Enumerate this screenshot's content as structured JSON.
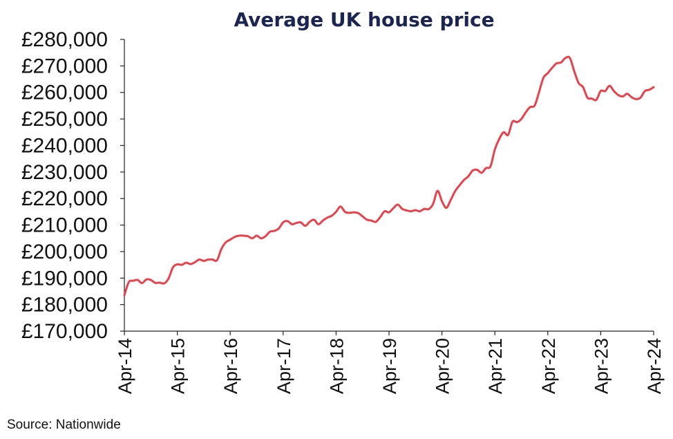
{
  "chart_data": {
    "type": "line",
    "title": "Average UK house price",
    "xlabel": "",
    "ylabel": "",
    "source": "Source: Nationwide",
    "ylim": [
      170000,
      280000
    ],
    "y_ticks": [
      170000,
      180000,
      190000,
      200000,
      210000,
      220000,
      230000,
      240000,
      250000,
      260000,
      270000,
      280000
    ],
    "y_tick_labels": [
      "£170,000",
      "£180,000",
      "£190,000",
      "£200,000",
      "£210,000",
      "£220,000",
      "£230,000",
      "£240,000",
      "£250,000",
      "£260,000",
      "£270,000",
      "£280,000"
    ],
    "x_tick_labels": [
      "Apr-14",
      "Apr-15",
      "Apr-16",
      "Apr-17",
      "Apr-18",
      "Apr-19",
      "Apr-20",
      "Apr-21",
      "Apr-22",
      "Apr-23",
      "Apr-24"
    ],
    "grid": false,
    "line_color": "#e8414b",
    "series": [
      {
        "x": [
          "2014-04",
          "2014-05",
          "2014-06",
          "2014-07",
          "2014-08",
          "2014-09",
          "2014-10",
          "2014-11",
          "2014-12",
          "2015-01",
          "2015-02",
          "2015-03",
          "2015-04",
          "2015-05",
          "2015-06",
          "2015-07",
          "2015-08",
          "2015-09",
          "2015-10",
          "2015-11",
          "2015-12",
          "2016-01",
          "2016-02",
          "2016-03",
          "2016-04",
          "2016-05",
          "2016-06",
          "2016-07",
          "2016-08",
          "2016-09",
          "2016-10",
          "2016-11",
          "2016-12",
          "2017-01",
          "2017-02",
          "2017-03",
          "2017-04",
          "2017-05",
          "2017-06",
          "2017-07",
          "2017-08",
          "2017-09",
          "2017-10",
          "2017-11",
          "2017-12",
          "2018-01",
          "2018-02",
          "2018-03",
          "2018-04",
          "2018-05",
          "2018-06",
          "2018-07",
          "2018-08",
          "2018-09",
          "2018-10",
          "2018-11",
          "2018-12",
          "2019-01",
          "2019-02",
          "2019-03",
          "2019-04",
          "2019-05",
          "2019-06",
          "2019-07",
          "2019-08",
          "2019-09",
          "2019-10",
          "2019-11",
          "2019-12",
          "2020-01",
          "2020-02",
          "2020-03",
          "2020-04",
          "2020-05",
          "2020-06",
          "2020-07",
          "2020-08",
          "2020-09",
          "2020-10",
          "2020-11",
          "2020-12",
          "2021-01",
          "2021-02",
          "2021-03",
          "2021-04",
          "2021-05",
          "2021-06",
          "2021-07",
          "2021-08",
          "2021-09",
          "2021-10",
          "2021-11",
          "2021-12",
          "2022-01",
          "2022-02",
          "2022-03",
          "2022-04",
          "2022-05",
          "2022-06",
          "2022-07",
          "2022-08",
          "2022-09",
          "2022-10",
          "2022-11",
          "2022-12",
          "2023-01",
          "2023-02",
          "2023-03",
          "2023-04",
          "2023-05",
          "2023-06",
          "2023-07",
          "2023-08",
          "2023-09",
          "2023-10",
          "2023-11",
          "2023-12",
          "2024-01",
          "2024-02",
          "2024-03",
          "2024-04"
        ],
        "values": [
          183500,
          188500,
          189000,
          189300,
          188100,
          189500,
          189300,
          188200,
          188300,
          188000,
          189800,
          194000,
          195200,
          195000,
          195800,
          195300,
          196000,
          197000,
          196500,
          197000,
          197000,
          196700,
          201000,
          203500,
          204500,
          205500,
          206000,
          206000,
          205800,
          205000,
          206000,
          205000,
          205800,
          207500,
          207800,
          208700,
          211000,
          211500,
          210300,
          210800,
          211000,
          209700,
          211200,
          212000,
          210300,
          211700,
          212800,
          213500,
          215000,
          217000,
          215000,
          214600,
          214800,
          214500,
          213300,
          212000,
          211700,
          211200,
          213000,
          215200,
          214800,
          216400,
          217700,
          216100,
          215500,
          215200,
          215600,
          215200,
          216100,
          216000,
          218000,
          222900,
          219000,
          216500,
          219500,
          222800,
          225000,
          227000,
          228400,
          230600,
          230800,
          229700,
          231500,
          232100,
          238500,
          242500,
          245000,
          244000,
          249000,
          248800,
          250000,
          252500,
          254500,
          255000,
          260000,
          265500,
          267300,
          269300,
          271000,
          271300,
          273000,
          273000,
          268000,
          263500,
          262000,
          258000,
          257700,
          257200,
          260600,
          260500,
          262500,
          260500,
          259000,
          258500,
          259500,
          258200,
          257500,
          258000,
          260500,
          261000,
          262000
        ]
      }
    ]
  }
}
